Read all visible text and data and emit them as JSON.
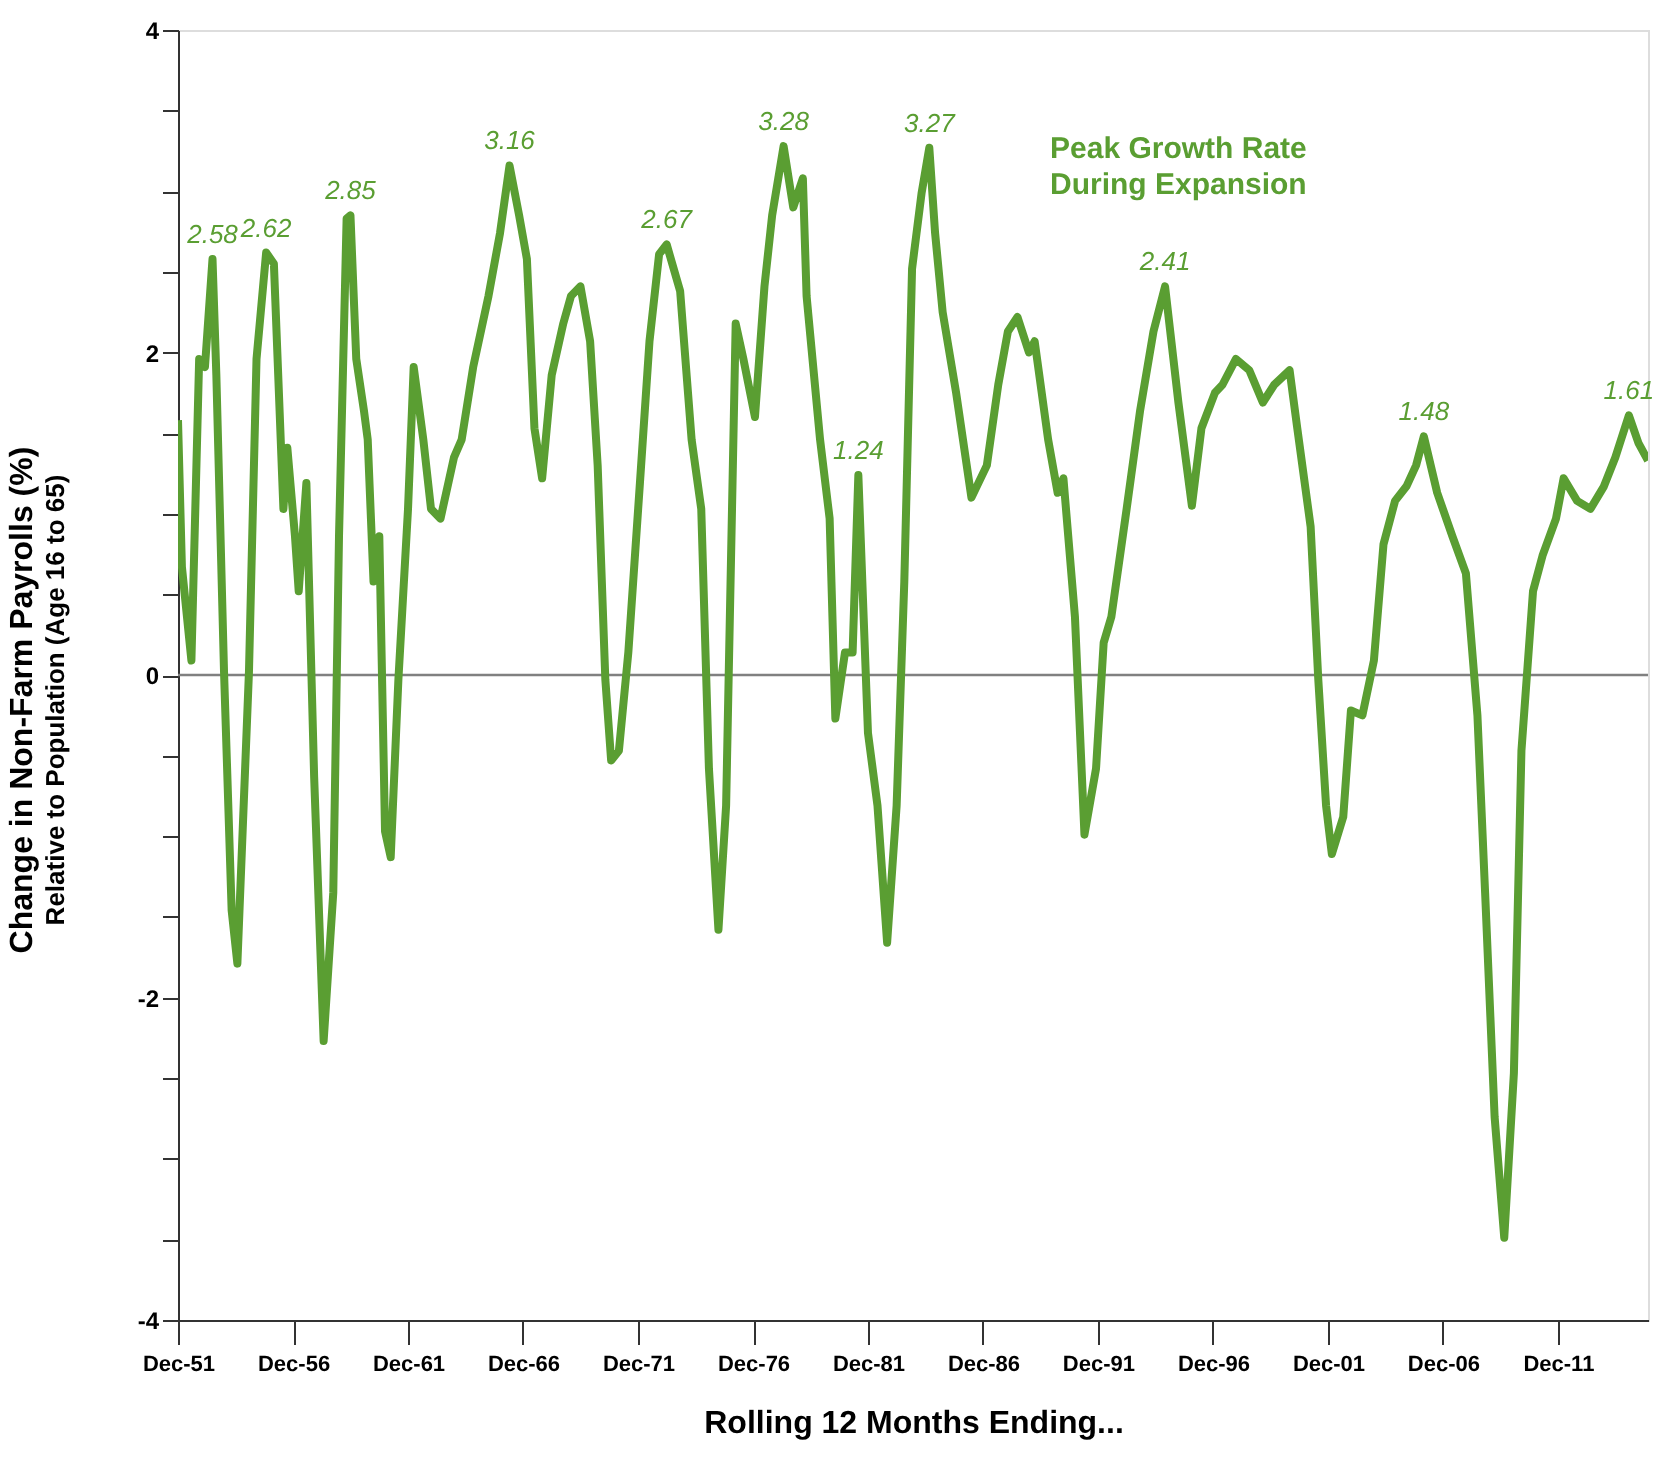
{
  "chart_data": {
    "type": "line",
    "xlabel": "Rolling 12 Months Ending...",
    "ylabel": "Change in Non-Farm Payrolls (%)\nRelative to Population (Age 16 to 65)",
    "x": [
      "1951-12",
      "1952-02",
      "1952-07",
      "1952-11",
      "1953-02",
      "1953-06",
      "1953-08",
      "1953-12",
      "1954-04",
      "1954-07",
      "1955-01",
      "1955-05",
      "1955-10",
      "1956-02",
      "1956-07",
      "1956-09",
      "1957-01",
      "1957-03",
      "1957-07",
      "1957-11",
      "1958-04",
      "1958-09",
      "1958-12",
      "1959-04",
      "1959-06",
      "1959-09",
      "1960-01",
      "1960-03",
      "1960-06",
      "1960-09",
      "1960-12",
      "1961-03",
      "1961-07",
      "1961-12",
      "1962-03",
      "1962-08",
      "1962-12",
      "1963-05",
      "1963-12",
      "1964-04",
      "1964-10",
      "1965-06",
      "1965-12",
      "1966-05",
      "1966-10",
      "1967-02",
      "1967-06",
      "1967-10",
      "1968-03",
      "1968-09",
      "1969-01",
      "1969-06",
      "1969-11",
      "1970-03",
      "1970-07",
      "1970-10",
      "1971-02",
      "1971-07",
      "1972-01",
      "1972-06",
      "1972-11",
      "1973-03",
      "1973-10",
      "1974-04",
      "1974-09",
      "1975-01",
      "1975-06",
      "1975-10",
      "1976-03",
      "1976-07",
      "1977-01",
      "1977-06",
      "1977-10",
      "1978-04",
      "1978-09",
      "1979-02",
      "1979-04",
      "1979-11",
      "1980-04",
      "1980-07",
      "1980-12",
      "1981-04",
      "1981-07",
      "1981-12",
      "1982-05",
      "1982-10",
      "1983-03",
      "1983-07",
      "1983-11",
      "1984-04",
      "1984-08",
      "1984-11",
      "1985-03",
      "1985-10",
      "1986-06",
      "1987-02",
      "1987-08",
      "1988-01",
      "1988-06",
      "1988-12",
      "1989-03",
      "1989-10",
      "1990-03",
      "1990-06",
      "1990-12",
      "1991-05",
      "1991-11",
      "1992-03",
      "1992-07",
      "1993-03",
      "1993-10",
      "1994-05",
      "1994-11",
      "1995-06",
      "1996-01",
      "1996-06",
      "1997-01",
      "1997-05",
      "1997-12",
      "1998-07",
      "1999-02",
      "1999-08",
      "2000-04",
      "2000-08",
      "2001-03",
      "2001-07",
      "2001-11",
      "2002-02",
      "2002-08",
      "2002-12",
      "2003-06",
      "2003-12",
      "2004-05",
      "2004-11",
      "2005-05",
      "2005-10",
      "2006-02",
      "2006-09",
      "2007-05",
      "2007-12",
      "2008-06",
      "2008-10",
      "2009-03",
      "2009-08",
      "2010-01",
      "2010-05",
      "2010-11",
      "2011-04",
      "2011-11",
      "2012-03",
      "2012-10",
      "2013-05",
      "2013-12",
      "2014-06",
      "2015-01",
      "2015-06",
      "2015-11"
    ],
    "series": [
      {
        "color": "#5a9e32",
        "values": [
          1.58,
          0.67,
          0.09,
          1.96,
          1.91,
          2.58,
          1.86,
          0.02,
          -1.46,
          -1.79,
          0.02,
          1.96,
          2.62,
          2.55,
          1.03,
          1.41,
          0.86,
          0.52,
          1.19,
          -0.63,
          -2.27,
          -1.35,
          0.86,
          2.83,
          2.85,
          1.96,
          1.64,
          1.46,
          0.58,
          0.86,
          -0.97,
          -1.13,
          -0.03,
          1.03,
          1.91,
          1.46,
          1.03,
          0.97,
          1.35,
          1.46,
          1.91,
          2.35,
          2.74,
          3.16,
          2.85,
          2.58,
          1.53,
          1.22,
          1.86,
          2.18,
          2.35,
          2.41,
          2.07,
          1.3,
          -0.03,
          -0.53,
          -0.47,
          0.14,
          1.19,
          2.07,
          2.61,
          2.67,
          2.38,
          1.46,
          1.03,
          -0.58,
          -1.58,
          -0.81,
          2.18,
          1.96,
          1.6,
          2.41,
          2.85,
          3.28,
          2.9,
          3.08,
          2.35,
          1.46,
          0.97,
          -0.27,
          0.14,
          0.14,
          1.24,
          -0.36,
          -0.81,
          -1.66,
          -0.81,
          0.58,
          2.52,
          2.99,
          3.27,
          2.74,
          2.25,
          1.75,
          1.1,
          1.3,
          1.8,
          2.13,
          2.22,
          2.0,
          2.07,
          1.46,
          1.13,
          1.22,
          0.36,
          -0.99,
          -0.58,
          0.2,
          0.36,
          1.03,
          1.64,
          2.13,
          2.41,
          1.69,
          1.05,
          1.53,
          1.75,
          1.8,
          1.96,
          1.89,
          1.69,
          1.8,
          1.89,
          1.53,
          0.92,
          -0.03,
          -0.81,
          -1.11,
          -0.88,
          -0.22,
          -0.25,
          0.09,
          0.81,
          1.08,
          1.17,
          1.3,
          1.48,
          1.13,
          0.86,
          0.63,
          -0.25,
          -1.35,
          -2.74,
          -3.49,
          -2.47,
          -0.47,
          0.52,
          0.74,
          0.97,
          1.22,
          1.08,
          1.03,
          1.17,
          1.35,
          1.61,
          1.44,
          1.33
        ]
      }
    ],
    "xlim": [
      "1951-12",
      "2015-11"
    ],
    "xticks": [
      {
        "value": "1951-12",
        "label": "Dec-51"
      },
      {
        "value": "1956-12",
        "label": "Dec-56"
      },
      {
        "value": "1961-12",
        "label": "Dec-61"
      },
      {
        "value": "1966-12",
        "label": "Dec-66"
      },
      {
        "value": "1971-12",
        "label": "Dec-71"
      },
      {
        "value": "1976-12",
        "label": "Dec-76"
      },
      {
        "value": "1981-12",
        "label": "Dec-81"
      },
      {
        "value": "1986-12",
        "label": "Dec-86"
      },
      {
        "value": "1991-12",
        "label": "Dec-91"
      },
      {
        "value": "1996-12",
        "label": "Dec-96"
      },
      {
        "value": "2001-12",
        "label": "Dec-01"
      },
      {
        "value": "2006-12",
        "label": "Dec-06"
      },
      {
        "value": "2011-12",
        "label": "Dec-11"
      }
    ],
    "ylim": [
      -4,
      4
    ],
    "yticks": [
      -4,
      {
        "value": -3.5,
        "label": null
      },
      {
        "value": -3,
        "label": null
      },
      {
        "value": -2.5,
        "label": null
      },
      -2,
      {
        "value": -1.5,
        "label": null
      },
      {
        "value": -1,
        "label": null
      },
      {
        "value": -0.5,
        "label": null
      },
      0,
      {
        "value": 0.5,
        "label": null
      },
      {
        "value": 1,
        "label": null
      },
      {
        "value": 1.5,
        "label": null
      },
      2,
      {
        "value": 2.5,
        "label": null
      },
      {
        "value": 3,
        "label": null
      },
      {
        "value": 3.5,
        "label": null
      },
      4
    ],
    "ref_lines": [
      {
        "axis": "y",
        "value": 0,
        "color": "#808080"
      }
    ],
    "annotations": [
      {
        "text": "2.58",
        "x": "1953-06",
        "y": 2.58
      },
      {
        "text": "2.62",
        "x": "1955-10",
        "y": 2.62
      },
      {
        "text": "2.85",
        "x": "1959-06",
        "y": 2.85
      },
      {
        "text": "3.16",
        "x": "1966-05",
        "y": 3.16
      },
      {
        "text": "2.67",
        "x": "1973-03",
        "y": 2.67
      },
      {
        "text": "3.28",
        "x": "1978-04",
        "y": 3.28
      },
      {
        "text": "1.24",
        "x": "1981-07",
        "y": 1.24
      },
      {
        "text": "3.27",
        "x": "1984-08",
        "y": 3.27
      },
      {
        "text": "2.41",
        "x": "1994-11",
        "y": 2.41
      },
      {
        "text": "1.48",
        "x": "2006-02",
        "y": 1.48
      },
      {
        "text": "1.61",
        "x": "2015-01",
        "y": 1.61
      },
      "Peak Growth Rate\nDuring Expansion"
    ],
    "grid": false,
    "marker": "none",
    "line_style": "solid"
  }
}
